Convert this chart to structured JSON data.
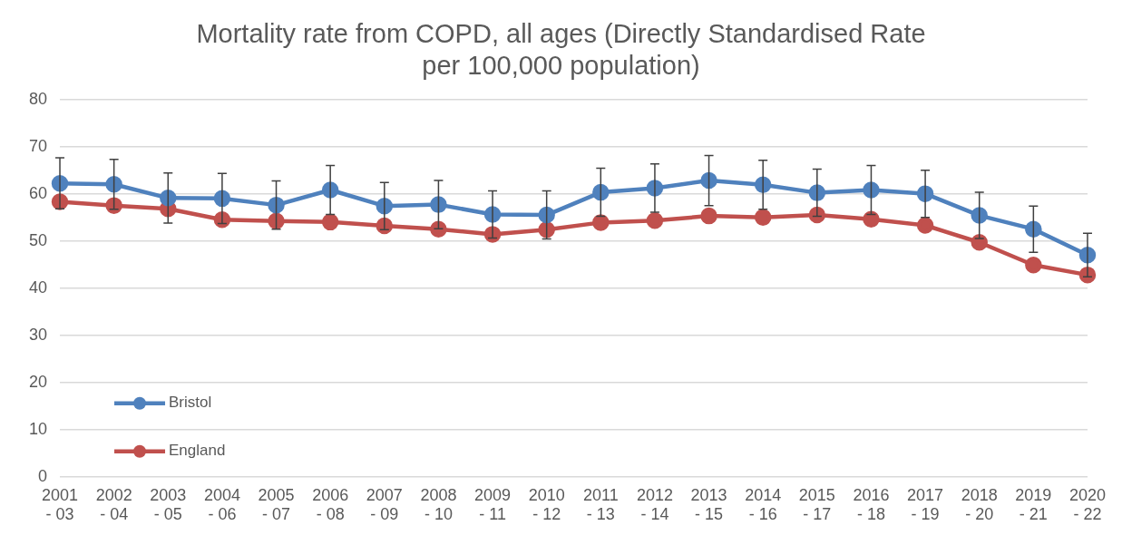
{
  "chart_data": {
    "type": "line",
    "title": "Mortality rate from COPD, all ages (Directly Standardised Rate per 100,000 population)",
    "categories": [
      "2001 - 03",
      "2002 - 04",
      "2003 - 05",
      "2004 - 06",
      "2005 - 07",
      "2006 - 08",
      "2007 - 09",
      "2008 - 10",
      "2009 - 11",
      "2010 - 12",
      "2011 - 13",
      "2012 - 14",
      "2013 - 15",
      "2014 - 16",
      "2015 - 17",
      "2016 - 18",
      "2017 - 19",
      "2018 - 20",
      "2019 - 21",
      "2020 - 22"
    ],
    "series": [
      {
        "name": "Bristol",
        "color": "#4f81bd",
        "values": [
          62.2,
          62.0,
          59.1,
          59.0,
          57.6,
          60.8,
          57.4,
          57.7,
          55.6,
          55.5,
          60.3,
          61.2,
          62.8,
          61.9,
          60.2,
          60.8,
          60.0,
          55.4,
          52.5,
          47.0
        ],
        "errors": [
          5.4,
          5.3,
          5.3,
          5.3,
          5.1,
          5.2,
          5.0,
          5.1,
          5.0,
          5.1,
          5.1,
          5.1,
          5.3,
          5.2,
          5.0,
          5.2,
          5.0,
          4.9,
          4.9,
          4.6
        ]
      },
      {
        "name": "England",
        "color": "#c0504d",
        "values": [
          58.3,
          57.5,
          56.8,
          54.5,
          54.2,
          54.0,
          53.2,
          52.5,
          51.4,
          52.4,
          53.9,
          54.3,
          55.3,
          55.0,
          55.5,
          54.6,
          53.3,
          49.7,
          44.9,
          42.8
        ]
      }
    ],
    "ylim": [
      0,
      80
    ],
    "yticks": [
      0,
      10,
      20,
      30,
      40,
      50,
      60,
      70,
      80
    ],
    "grid": "y",
    "legend": "bottom left",
    "marker": "circle",
    "line_style": "solid"
  }
}
